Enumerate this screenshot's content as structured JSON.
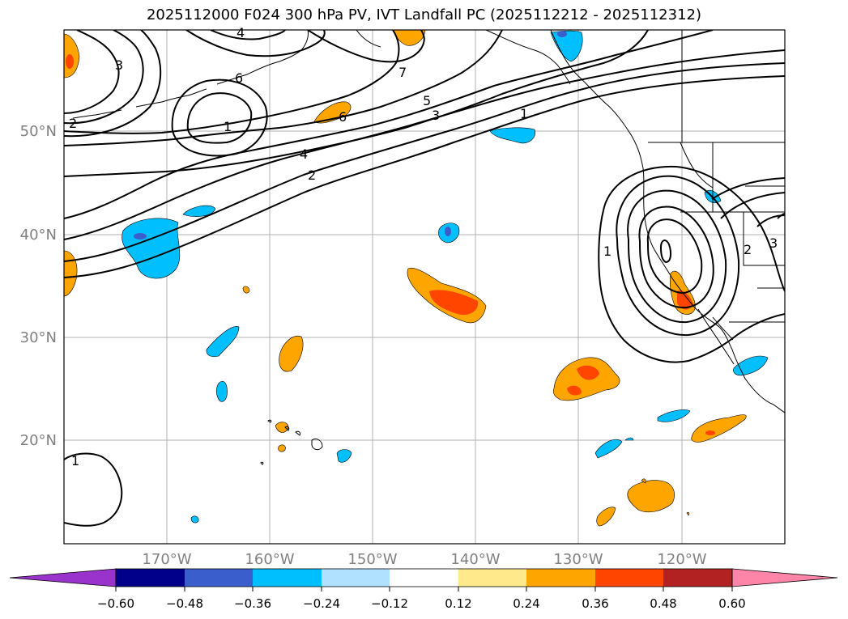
{
  "title": "2025112000 F024 300 hPa PV, IVT Landfall PC (2025112212 - 2025112312)",
  "lat_labels": [
    "50°N",
    "40°N",
    "30°N",
    "20°N"
  ],
  "lon_labels": [
    "170°W",
    "160°W",
    "150°W",
    "140°W",
    "130°W",
    "120°W"
  ],
  "colorbar": {
    "ticks": [
      "−0.60",
      "−0.48",
      "−0.36",
      "−0.24",
      "−0.12",
      "0.12",
      "0.24",
      "0.36",
      "0.48",
      "0.60"
    ],
    "colors": [
      "#9933cc",
      "#00008b",
      "#3a5fcd",
      "#00bfff",
      "#b0e2ff",
      "#ffffff",
      "#ffe98a",
      "#ffa500",
      "#ff4500",
      "#b22222",
      "#ff85a8"
    ]
  },
  "contour_labels": [
    "1",
    "2",
    "3",
    "4",
    "5",
    "6",
    "7",
    "1",
    "2",
    "3",
    "4",
    "6",
    "1",
    "2",
    "3",
    "1"
  ]
}
